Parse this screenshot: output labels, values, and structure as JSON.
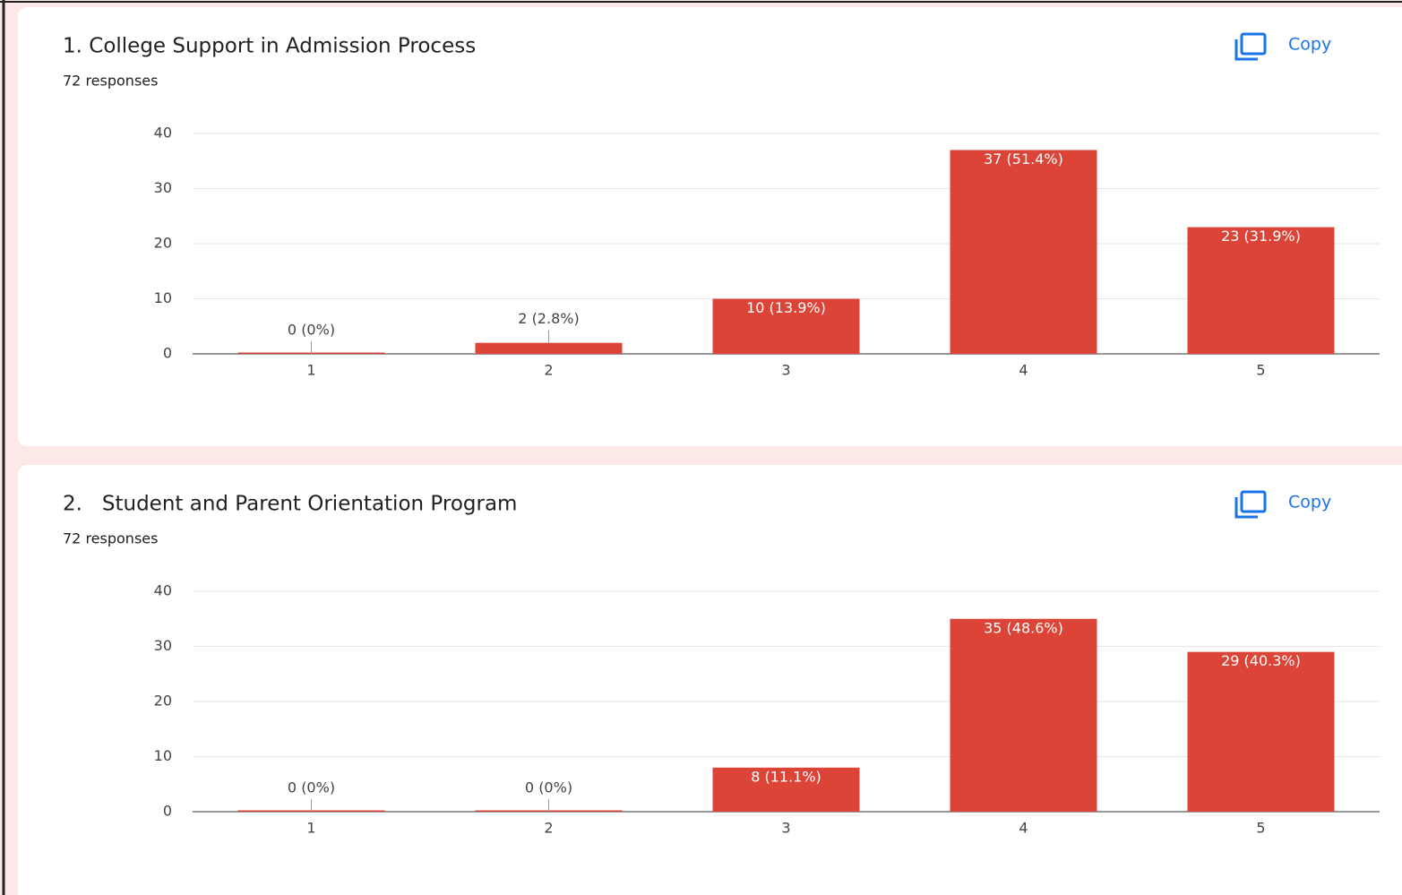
{
  "chart_data": [
    {
      "type": "bar",
      "title": "1. College Support in Admission Process",
      "subtitle": "72 responses",
      "action": "Copy",
      "categories": [
        "1",
        "2",
        "3",
        "4",
        "5"
      ],
      "values": [
        0,
        2,
        10,
        37,
        23
      ],
      "value_labels": [
        "0 (0%)",
        "2 (2.8%)",
        "10 (13.9%)",
        "37 (51.4%)",
        "23 (31.9%)"
      ],
      "color": "#db4437",
      "ylim": [
        0,
        40
      ],
      "yticks": [
        0,
        10,
        20,
        30,
        40
      ],
      "grid": true
    },
    {
      "type": "bar",
      "title": "2.   Student and Parent Orientation Program",
      "subtitle": "72 responses",
      "action": "Copy",
      "categories": [
        "1",
        "2",
        "3",
        "4",
        "5"
      ],
      "values": [
        0,
        0,
        8,
        35,
        29
      ],
      "value_labels": [
        "0 (0%)",
        "0 (0%)",
        "8 (11.1%)",
        "35 (48.6%)",
        "29 (40.3%)"
      ],
      "color": "#db4437",
      "ylim": [
        0,
        40
      ],
      "yticks": [
        0,
        10,
        20,
        30,
        40
      ],
      "grid": true
    }
  ]
}
